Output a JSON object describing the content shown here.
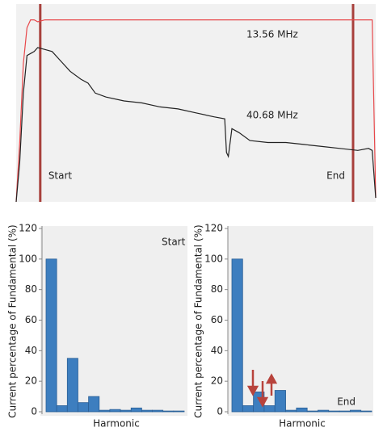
{
  "chart_data": [
    {
      "type": "line",
      "x": [
        0,
        1,
        2,
        3,
        4,
        5,
        6,
        8,
        10,
        12,
        15,
        18,
        20,
        22,
        25,
        30,
        35,
        40,
        45,
        50,
        55,
        58,
        58.5,
        59,
        60,
        62,
        65,
        70,
        75,
        80,
        85,
        90,
        95,
        98,
        99,
        100
      ],
      "xlim": [
        0,
        100
      ],
      "ylim": [
        0,
        100
      ],
      "series": [
        {
          "name": "13.56 MHz",
          "color": "#e8474a",
          "values": [
            0,
            30,
            70,
            88,
            92,
            92,
            91,
            92,
            92,
            92,
            92,
            92,
            92,
            92,
            92,
            92,
            92,
            92,
            92,
            92,
            92,
            92,
            92,
            92,
            92,
            92,
            92,
            92,
            92,
            92,
            92,
            92,
            92,
            92,
            92,
            2
          ]
        },
        {
          "name": "40.68 MHz",
          "color": "#222222",
          "values": [
            0,
            20,
            55,
            74,
            75,
            76,
            78,
            77,
            76,
            72,
            66,
            62,
            60,
            55,
            53,
            51,
            50,
            48,
            47,
            45,
            43,
            42,
            25,
            23,
            37,
            35,
            31,
            30,
            30,
            29,
            28,
            27,
            26,
            27,
            26,
            2
          ]
        }
      ],
      "markers": [
        {
          "label": "Start",
          "x": 6.7
        },
        {
          "label": "End",
          "x": 93.7
        }
      ],
      "marker_color": "#a8403c"
    },
    {
      "type": "bar",
      "annotation": "Start",
      "categories": [
        null,
        null,
        null,
        null,
        null,
        null,
        null,
        null,
        null,
        null,
        null,
        null,
        null
      ],
      "values": [
        100,
        4,
        35,
        6,
        10,
        1,
        1.5,
        1,
        2.5,
        1,
        1,
        0.5,
        0.5
      ],
      "color": "#3d7ebf",
      "ylim": [
        0,
        120
      ],
      "yticks": [
        0,
        20,
        40,
        60,
        80,
        100,
        120
      ],
      "x_label": "Harmonic",
      "y_label": "Current percentage of Fundamental (%)"
    },
    {
      "type": "bar",
      "annotation": "End",
      "categories": [
        null,
        null,
        null,
        null,
        null,
        null,
        null,
        null,
        null,
        null,
        null,
        null,
        null
      ],
      "values": [
        100,
        4,
        13,
        4,
        14,
        1,
        2.5,
        0.5,
        1,
        0.5,
        0.5,
        1,
        0.5
      ],
      "color": "#3d7ebf",
      "ylim": [
        0,
        120
      ],
      "yticks": [
        0,
        20,
        40,
        60,
        80,
        100,
        120
      ],
      "x_label": "Harmonic",
      "y_label": "Current percentage of Fundamental (%)"
    }
  ]
}
